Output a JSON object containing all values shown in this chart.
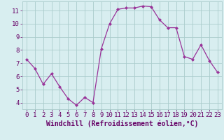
{
  "x": [
    0,
    1,
    2,
    3,
    4,
    5,
    6,
    7,
    8,
    9,
    10,
    11,
    12,
    13,
    14,
    15,
    16,
    17,
    18,
    19,
    20,
    21,
    22,
    23
  ],
  "y": [
    7.3,
    6.6,
    5.4,
    6.2,
    5.2,
    4.3,
    3.8,
    4.4,
    4.0,
    8.1,
    10.0,
    11.1,
    11.2,
    11.2,
    11.35,
    11.3,
    10.3,
    9.7,
    9.7,
    7.5,
    7.3,
    8.4,
    7.2,
    6.3
  ],
  "line_color": "#993399",
  "marker": "D",
  "marker_size": 2,
  "bg_color": "#d8eef0",
  "grid_color": "#aacccc",
  "xlabel": "Windchill (Refroidissement éolien,°C)",
  "ylabel_ticks": [
    4,
    5,
    6,
    7,
    8,
    9,
    10,
    11
  ],
  "xlim": [
    -0.5,
    23.5
  ],
  "ylim": [
    3.5,
    11.7
  ],
  "xlabel_fontsize": 7,
  "tick_fontsize": 6.5,
  "label_color": "#660066",
  "grid_linewidth": 0.6
}
